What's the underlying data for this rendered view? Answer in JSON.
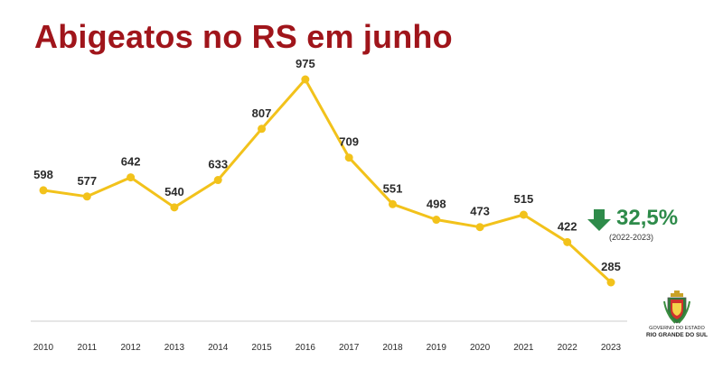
{
  "colors": {
    "title": "#a0151b",
    "line": "#f2c21b",
    "text": "#2b2b2b",
    "axis": "#cccccc",
    "change": "#2e8b4a"
  },
  "change": {
    "icon": "down-arrow-icon",
    "value": "32,5%",
    "period": "(2022-2023)"
  },
  "logo": {
    "line1": "GOVERNO DO ESTADO",
    "line2": "RIO GRANDE DO SUL"
  },
  "chart_data": {
    "type": "line",
    "title": "Abigeatos no RS em junho",
    "categories": [
      "2010",
      "2011",
      "2012",
      "2013",
      "2014",
      "2015",
      "2016",
      "2017",
      "2018",
      "2019",
      "2020",
      "2021",
      "2022",
      "2023"
    ],
    "values": [
      598,
      577,
      642,
      540,
      633,
      807,
      975,
      709,
      551,
      498,
      473,
      515,
      422,
      285
    ],
    "data_labels": [
      "598",
      "577",
      "642",
      "540",
      "633",
      "807",
      "975",
      "709",
      "551",
      "498",
      "473",
      "515",
      "422",
      "285"
    ],
    "grid": false,
    "legend": "none"
  }
}
